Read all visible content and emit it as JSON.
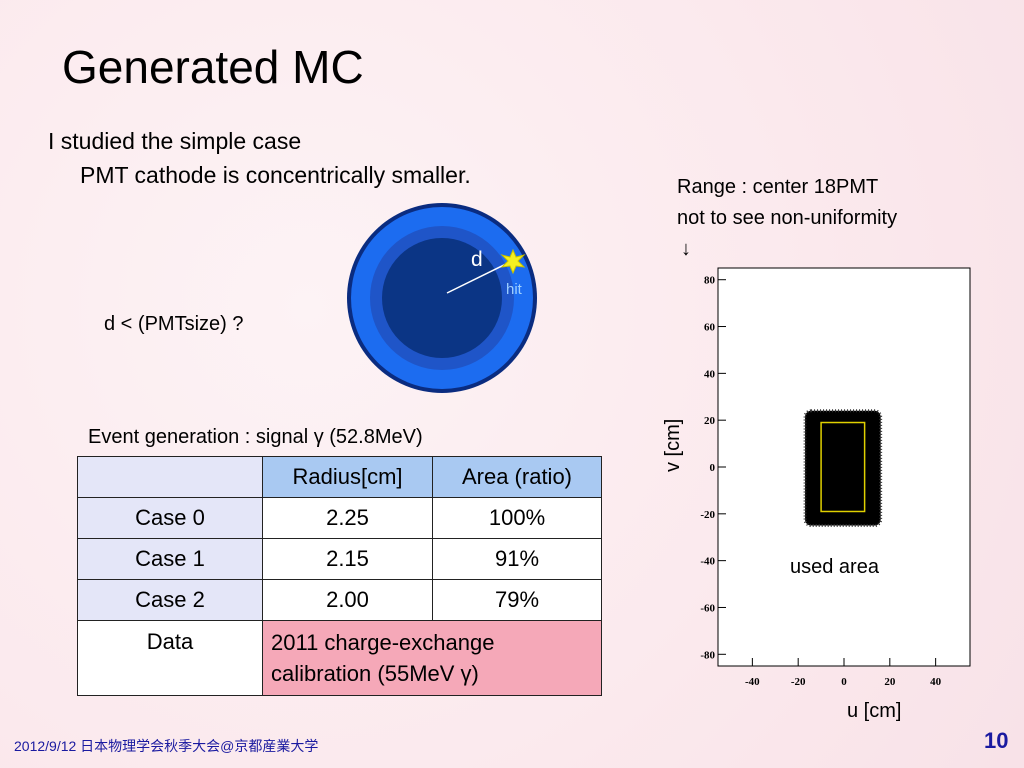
{
  "title": "Generated MC",
  "intro": {
    "line1": "I studied the simple case",
    "line2": "PMT cathode is concentrically smaller."
  },
  "diagram": {
    "d": "d",
    "hit": "hit",
    "condition": "d < (PMTsize) ?"
  },
  "event_generation": "Event generation : signal γ (52.8MeV)",
  "table": {
    "header": [
      "Radius[cm]",
      "Area (ratio)"
    ],
    "rows": [
      [
        "Case 0",
        "2.25",
        "100%"
      ],
      [
        "Case 1",
        "2.15",
        "91%"
      ],
      [
        "Case 2",
        "2.00",
        "79%"
      ]
    ],
    "data_row": {
      "label": "Data",
      "note": "2011 charge-exchange calibration (55MeV γ)"
    }
  },
  "range_note": {
    "line1": "Range : center 18PMT",
    "line2": "not to see non-uniformity",
    "arrow": "↓"
  },
  "plot": {
    "xlabel": "u [cm]",
    "ylabel": "v [cm]",
    "annotation": "used area",
    "xlim": [
      -55,
      55
    ],
    "ylim": [
      -85,
      85
    ],
    "xticks": [
      -40,
      -20,
      0,
      20,
      40
    ],
    "yticks": [
      -80,
      -60,
      -40,
      -20,
      0,
      20,
      40,
      60,
      80
    ],
    "event_region": {
      "u": [
        -17,
        16
      ],
      "v": [
        -25,
        24
      ]
    },
    "used_area": {
      "u": [
        -10,
        9
      ],
      "v": [
        -19,
        19
      ]
    }
  },
  "footer": {
    "date": "2012/9/12 日本物理学会秋季大会@京都産業大学",
    "page": "10"
  }
}
